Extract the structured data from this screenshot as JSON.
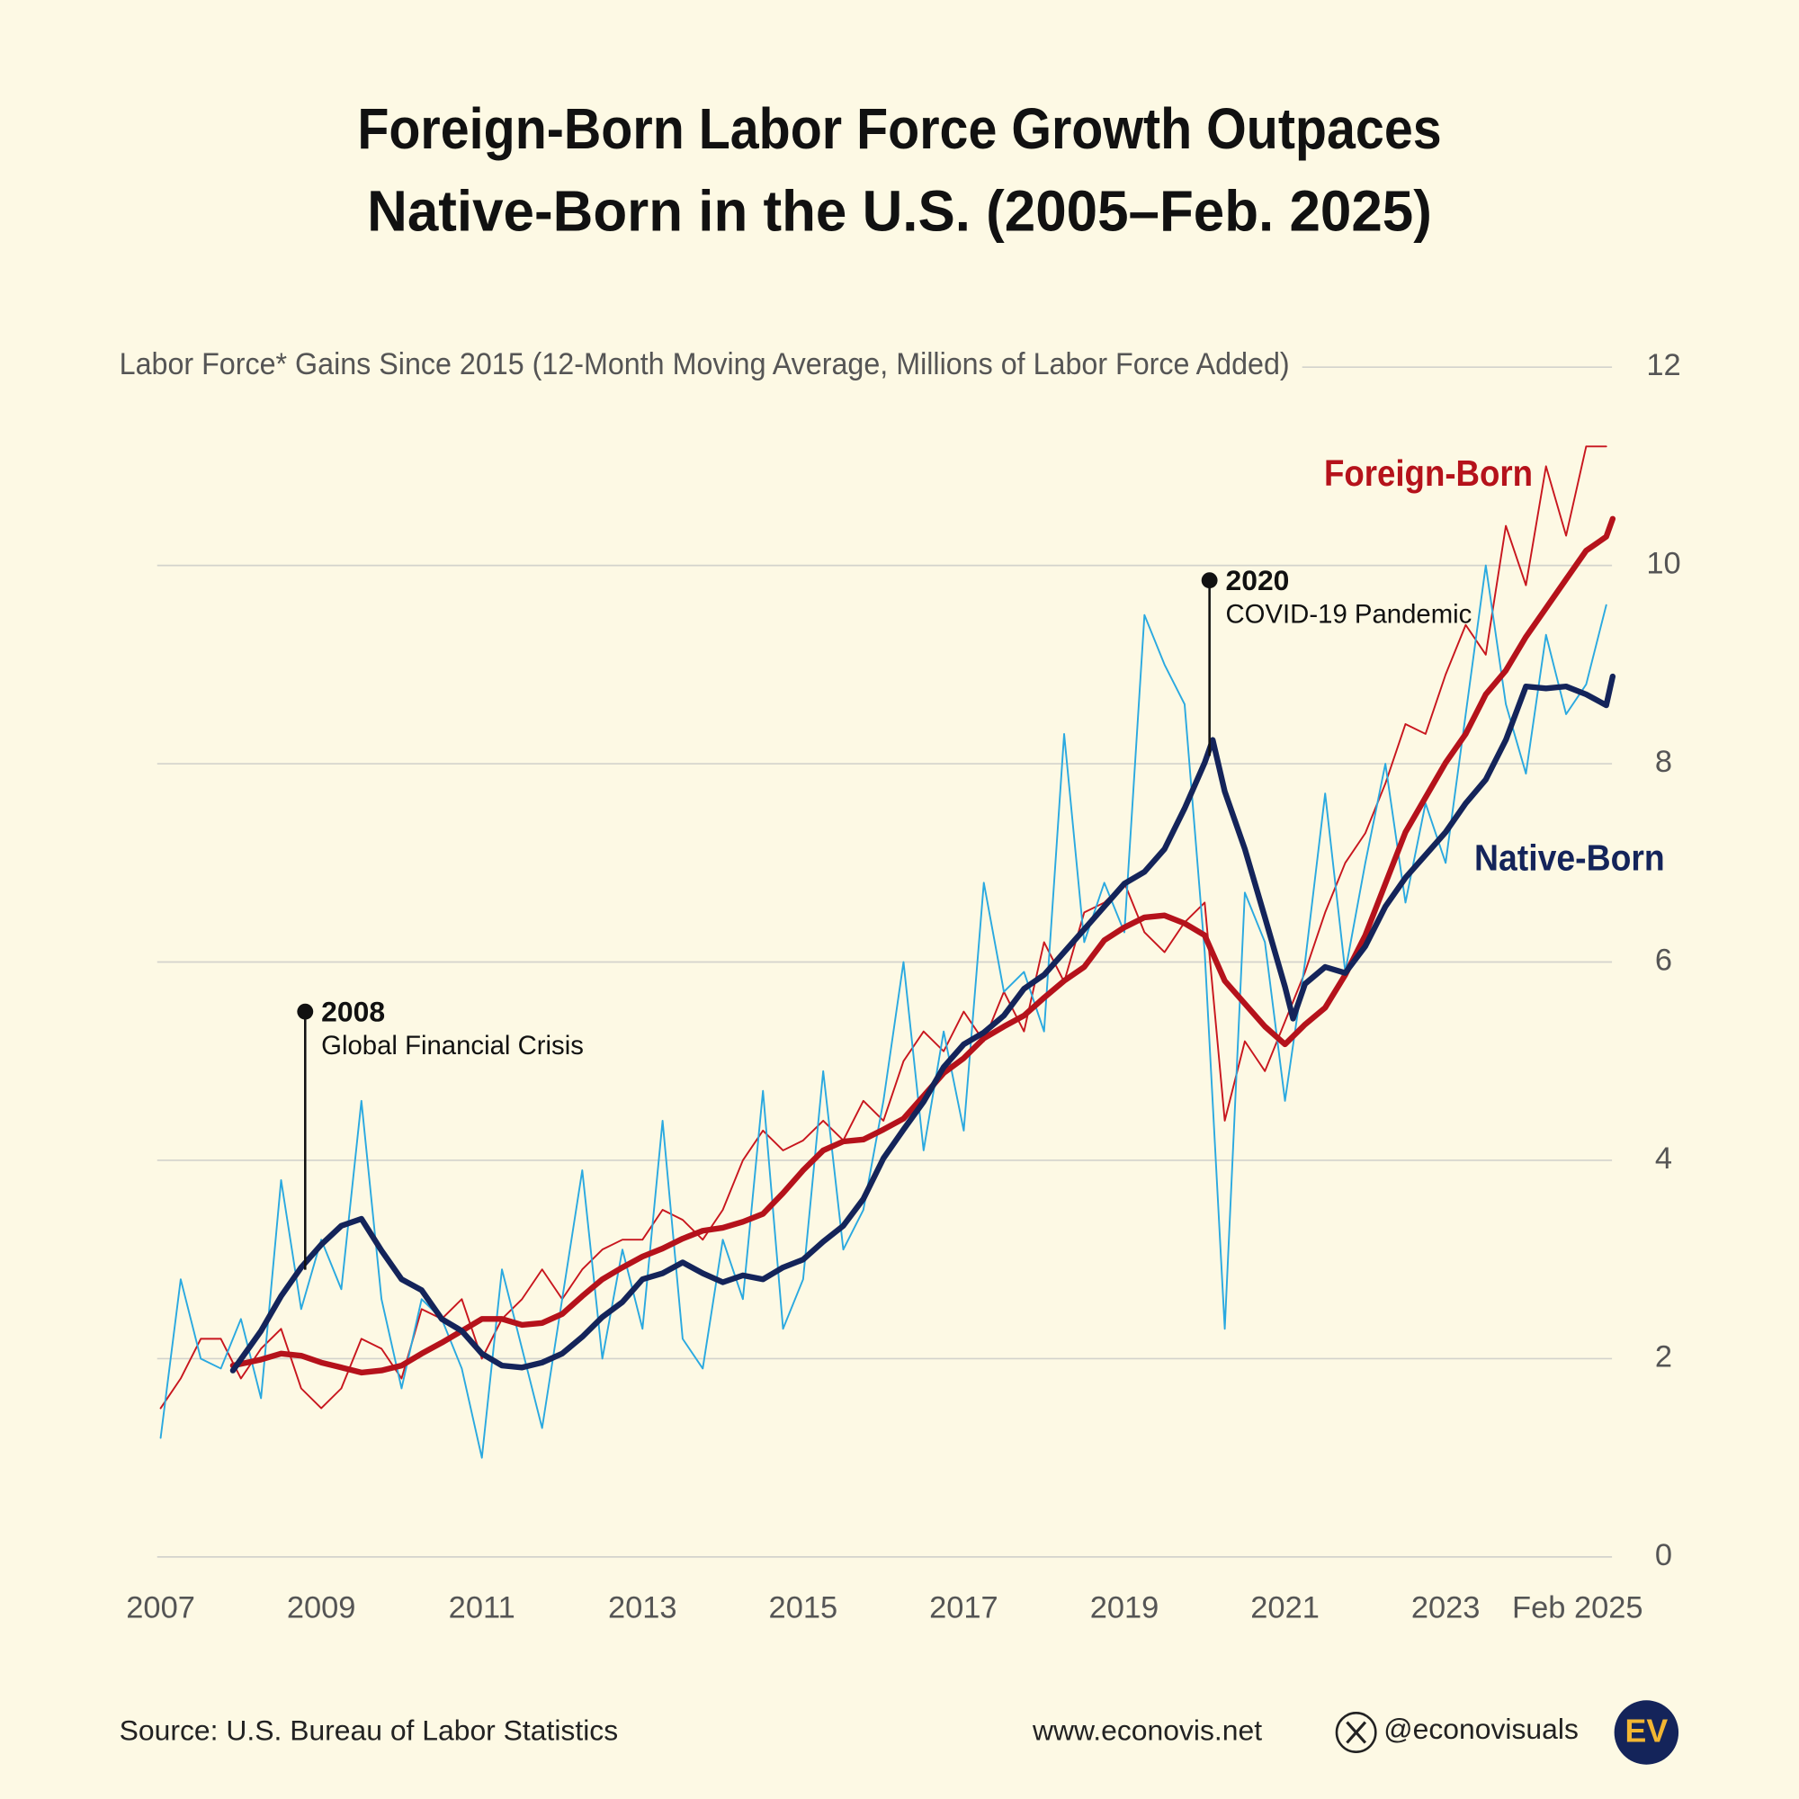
{
  "chart_data": {
    "type": "line",
    "title": [
      "Foreign-Born Labor Force Growth Outpaces",
      "Native-Born in the U.S.  (2005–Feb. 2025)"
    ],
    "y_axis_title": "Labor Force* Gains Since 2015 (12-Month Moving Average, Millions of Labor Force Added)",
    "xlim": [
      2007,
      2025
    ],
    "xticks": [
      2007,
      2009,
      2011,
      2013,
      2015,
      2017,
      2019,
      2021,
      2023,
      {
        "value": 2025,
        "label": "Feb 2025"
      }
    ],
    "ylim": [
      0,
      12
    ],
    "yticks": [
      0,
      2,
      4,
      6,
      8,
      10,
      12
    ],
    "grid": true,
    "series": [
      {
        "name": "Foreign-Born",
        "color": "#b5121b",
        "x": [
          2007.9,
          2008.25,
          2008.5,
          2008.75,
          2009,
          2009.25,
          2009.5,
          2009.75,
          2010,
          2010.25,
          2010.5,
          2010.75,
          2011,
          2011.25,
          2011.5,
          2011.75,
          2012,
          2012.25,
          2012.5,
          2012.75,
          2013,
          2013.25,
          2013.5,
          2013.75,
          2014,
          2014.25,
          2014.5,
          2014.75,
          2015,
          2015.25,
          2015.5,
          2015.75,
          2016,
          2016.25,
          2016.5,
          2016.75,
          2017,
          2017.25,
          2017.5,
          2017.75,
          2018,
          2018.25,
          2018.5,
          2018.75,
          2019,
          2019.25,
          2019.5,
          2019.75,
          2020,
          2020.25,
          2020.5,
          2020.75,
          2021,
          2021.25,
          2021.5,
          2021.75,
          2022,
          2022.25,
          2022.5,
          2022.75,
          2023,
          2023.25,
          2023.5,
          2023.75,
          2024,
          2024.25,
          2024.5,
          2024.75,
          2025,
          2025.08
        ],
        "values": [
          1.93,
          1.99,
          2.05,
          2.03,
          1.96,
          1.91,
          1.86,
          1.88,
          1.93,
          2.05,
          2.16,
          2.28,
          2.4,
          2.4,
          2.34,
          2.36,
          2.45,
          2.63,
          2.8,
          2.92,
          3.03,
          3.11,
          3.21,
          3.29,
          3.32,
          3.38,
          3.46,
          3.67,
          3.9,
          4.1,
          4.19,
          4.21,
          4.31,
          4.42,
          4.65,
          4.88,
          5.03,
          5.23,
          5.35,
          5.46,
          5.64,
          5.81,
          5.95,
          6.22,
          6.35,
          6.45,
          6.47,
          6.39,
          6.27,
          5.81,
          5.58,
          5.35,
          5.17,
          5.37,
          5.54,
          5.87,
          6.27,
          6.79,
          7.31,
          7.66,
          8.01,
          8.3,
          8.7,
          8.94,
          9.28,
          9.57,
          9.86,
          10.15,
          10.29,
          10.47
        ],
        "monthly": {
          "color": "#c8161e",
          "x": [
            2007,
            2007.25,
            2007.5,
            2007.75,
            2008,
            2008.25,
            2008.5,
            2008.75,
            2009,
            2009.25,
            2009.5,
            2009.75,
            2010,
            2010.25,
            2010.5,
            2010.75,
            2011,
            2011.25,
            2011.5,
            2011.75,
            2012,
            2012.25,
            2012.5,
            2012.75,
            2013,
            2013.25,
            2013.5,
            2013.75,
            2014,
            2014.25,
            2014.5,
            2014.75,
            2015,
            2015.25,
            2015.5,
            2015.75,
            2016,
            2016.25,
            2016.5,
            2016.75,
            2017,
            2017.25,
            2017.5,
            2017.75,
            2018,
            2018.25,
            2018.5,
            2018.75,
            2019,
            2019.25,
            2019.5,
            2019.75,
            2020,
            2020.25,
            2020.5,
            2020.75,
            2021,
            2021.25,
            2021.5,
            2021.75,
            2022,
            2022.25,
            2022.5,
            2022.75,
            2023,
            2023.25,
            2023.5,
            2023.75,
            2024,
            2024.25,
            2024.5,
            2024.75,
            2025
          ],
          "values": [
            1.5,
            1.8,
            2.2,
            2.2,
            1.8,
            2.1,
            2.3,
            1.7,
            1.5,
            1.7,
            2.2,
            2.1,
            1.8,
            2.5,
            2.4,
            2.6,
            2.0,
            2.4,
            2.6,
            2.9,
            2.6,
            2.9,
            3.1,
            3.2,
            3.2,
            3.5,
            3.4,
            3.2,
            3.5,
            4.0,
            4.3,
            4.1,
            4.2,
            4.4,
            4.2,
            4.6,
            4.4,
            5.0,
            5.3,
            5.1,
            5.5,
            5.2,
            5.7,
            5.3,
            6.2,
            5.8,
            6.5,
            6.6,
            6.8,
            6.3,
            6.1,
            6.4,
            6.6,
            4.4,
            5.2,
            4.9,
            5.4,
            5.9,
            6.5,
            7.0,
            7.3,
            7.8,
            8.4,
            8.3,
            8.9,
            9.4,
            9.1,
            10.4,
            9.8,
            11.0,
            10.3,
            11.2,
            11.2
          ]
        }
      },
      {
        "name": "Native-Born",
        "color": "#14245a",
        "x": [
          2007.9,
          2008.25,
          2008.5,
          2008.75,
          2009,
          2009.25,
          2009.5,
          2009.75,
          2010,
          2010.25,
          2010.5,
          2010.75,
          2011,
          2011.25,
          2011.5,
          2011.75,
          2012,
          2012.25,
          2012.5,
          2012.75,
          2013,
          2013.25,
          2013.5,
          2013.75,
          2014,
          2014.25,
          2014.5,
          2014.75,
          2015,
          2015.25,
          2015.5,
          2015.75,
          2016,
          2016.25,
          2016.5,
          2016.75,
          2017,
          2017.25,
          2017.5,
          2017.75,
          2018,
          2018.25,
          2018.5,
          2018.75,
          2019,
          2019.25,
          2019.5,
          2019.75,
          2020,
          2020.1,
          2020.25,
          2020.5,
          2020.75,
          2021,
          2021.1,
          2021.25,
          2021.5,
          2021.75,
          2022,
          2022.25,
          2022.5,
          2022.75,
          2023,
          2023.25,
          2023.5,
          2023.75,
          2024,
          2024.25,
          2024.5,
          2024.75,
          2025,
          2025.08
        ],
        "values": [
          1.88,
          2.28,
          2.63,
          2.92,
          3.15,
          3.34,
          3.41,
          3.09,
          2.8,
          2.69,
          2.4,
          2.28,
          2.05,
          1.93,
          1.91,
          1.96,
          2.05,
          2.22,
          2.42,
          2.57,
          2.8,
          2.86,
          2.97,
          2.86,
          2.77,
          2.84,
          2.8,
          2.92,
          3.0,
          3.18,
          3.34,
          3.61,
          4.02,
          4.31,
          4.59,
          4.94,
          5.17,
          5.29,
          5.46,
          5.73,
          5.87,
          6.1,
          6.33,
          6.56,
          6.79,
          6.91,
          7.14,
          7.55,
          8.01,
          8.24,
          7.72,
          7.14,
          6.45,
          5.75,
          5.43,
          5.78,
          5.95,
          5.89,
          6.16,
          6.56,
          6.85,
          7.08,
          7.31,
          7.6,
          7.84,
          8.24,
          8.78,
          8.76,
          8.78,
          8.7,
          8.59,
          8.88
        ],
        "monthly": {
          "color": "#2aa9e0",
          "x": [
            2007,
            2007.25,
            2007.5,
            2007.75,
            2008,
            2008.25,
            2008.5,
            2008.75,
            2009,
            2009.25,
            2009.5,
            2009.75,
            2010,
            2010.25,
            2010.5,
            2010.75,
            2011,
            2011.25,
            2011.5,
            2011.75,
            2012,
            2012.25,
            2012.5,
            2012.75,
            2013,
            2013.25,
            2013.5,
            2013.75,
            2014,
            2014.25,
            2014.5,
            2014.75,
            2015,
            2015.25,
            2015.5,
            2015.75,
            2016,
            2016.25,
            2016.5,
            2016.75,
            2017,
            2017.25,
            2017.5,
            2017.75,
            2018,
            2018.25,
            2018.5,
            2018.75,
            2019,
            2019.25,
            2019.5,
            2019.75,
            2020,
            2020.25,
            2020.5,
            2020.75,
            2021,
            2021.25,
            2021.5,
            2021.75,
            2022,
            2022.25,
            2022.5,
            2022.75,
            2023,
            2023.25,
            2023.5,
            2023.75,
            2024,
            2024.25,
            2024.5,
            2024.75,
            2025
          ],
          "values": [
            1.2,
            2.8,
            2.0,
            1.9,
            2.4,
            1.6,
            3.8,
            2.5,
            3.2,
            2.7,
            4.6,
            2.6,
            1.7,
            2.6,
            2.4,
            1.9,
            1.0,
            2.9,
            2.1,
            1.3,
            2.6,
            3.9,
            2.0,
            3.1,
            2.3,
            4.4,
            2.2,
            1.9,
            3.2,
            2.6,
            4.7,
            2.3,
            2.8,
            4.9,
            3.1,
            3.5,
            4.6,
            6.0,
            4.1,
            5.3,
            4.3,
            6.8,
            5.7,
            5.9,
            5.3,
            8.3,
            6.2,
            6.8,
            6.3,
            9.5,
            9.0,
            8.6,
            6.1,
            2.3,
            6.7,
            6.2,
            4.6,
            6.0,
            7.7,
            5.9,
            7.0,
            8.0,
            6.6,
            7.6,
            7.0,
            8.5,
            10.0,
            8.6,
            7.9,
            9.3,
            8.5,
            8.8,
            9.6
          ]
        }
      }
    ],
    "annotations": [
      {
        "label": "2008",
        "text": "Global Financial Crisis",
        "x": 2008.8,
        "y": 5.5
      },
      {
        "label": "2020",
        "text": "COVID-19 Pandemic",
        "x": 2020.06,
        "y": 9.85
      }
    ]
  },
  "footer": {
    "source": "Source: U.S. Bureau of Labor Statistics",
    "website": "www.econovis.net",
    "handle": "@econovisuals",
    "logo": "EV"
  }
}
